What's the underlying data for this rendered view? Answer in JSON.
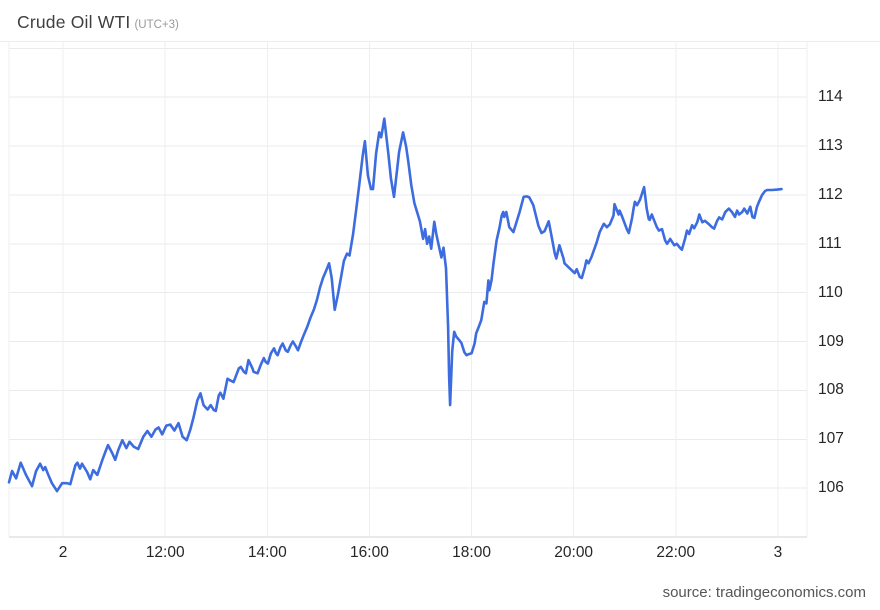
{
  "header": {
    "title": "Crude Oil WTI",
    "timezone_label": "(UTC+3)"
  },
  "footer": {
    "source": "source: tradingeconomics.com"
  },
  "chart_data": {
    "type": "line",
    "title": "Crude Oil WTI",
    "timezone": "UTC+3",
    "grid": true,
    "legend_position": "none",
    "series_color": "#3c6ce0",
    "x_unit": "hour_of_day (values >= 24 are day 3)",
    "x_axis": {
      "position": "bottom",
      "range_hours": [
        8.94,
        24.57
      ],
      "ticks": [
        {
          "t": 10,
          "label": "2"
        },
        {
          "t": 12,
          "label": "12:00"
        },
        {
          "t": 14,
          "label": "14:00"
        },
        {
          "t": 16,
          "label": "16:00"
        },
        {
          "t": 18,
          "label": "18:00"
        },
        {
          "t": 20,
          "label": "20:00"
        },
        {
          "t": 22,
          "label": "22:00"
        },
        {
          "t": 24,
          "label": "3"
        }
      ]
    },
    "y_axis": {
      "position": "right",
      "range": [
        105.0,
        115.15
      ],
      "ticks": [
        106,
        107,
        108,
        109,
        110,
        111,
        112,
        113,
        114
      ]
    },
    "series": [
      {
        "name": "Crude Oil WTI",
        "points": [
          [
            8.94,
            106.12
          ],
          [
            9.0,
            106.35
          ],
          [
            9.08,
            106.2
          ],
          [
            9.17,
            106.52
          ],
          [
            9.27,
            106.28
          ],
          [
            9.39,
            106.04
          ],
          [
            9.47,
            106.35
          ],
          [
            9.55,
            106.5
          ],
          [
            9.61,
            106.37
          ],
          [
            9.65,
            106.43
          ],
          [
            9.71,
            106.27
          ],
          [
            9.78,
            106.1
          ],
          [
            9.88,
            105.94
          ],
          [
            9.98,
            106.1
          ],
          [
            10.08,
            106.1
          ],
          [
            10.14,
            106.08
          ],
          [
            10.24,
            106.47
          ],
          [
            10.28,
            106.52
          ],
          [
            10.33,
            106.4
          ],
          [
            10.37,
            106.5
          ],
          [
            10.47,
            106.33
          ],
          [
            10.53,
            106.18
          ],
          [
            10.59,
            106.37
          ],
          [
            10.67,
            106.27
          ],
          [
            10.77,
            106.58
          ],
          [
            10.83,
            106.75
          ],
          [
            10.88,
            106.88
          ],
          [
            10.96,
            106.72
          ],
          [
            11.02,
            106.58
          ],
          [
            11.08,
            106.78
          ],
          [
            11.16,
            106.98
          ],
          [
            11.24,
            106.82
          ],
          [
            11.3,
            106.95
          ],
          [
            11.38,
            106.85
          ],
          [
            11.47,
            106.8
          ],
          [
            11.57,
            107.05
          ],
          [
            11.65,
            107.17
          ],
          [
            11.73,
            107.05
          ],
          [
            11.81,
            107.2
          ],
          [
            11.87,
            107.24
          ],
          [
            11.94,
            107.1
          ],
          [
            12.02,
            107.28
          ],
          [
            12.1,
            107.3
          ],
          [
            12.18,
            107.18
          ],
          [
            12.26,
            107.33
          ],
          [
            12.34,
            107.05
          ],
          [
            12.42,
            106.98
          ],
          [
            12.49,
            107.19
          ],
          [
            12.55,
            107.43
          ],
          [
            12.63,
            107.8
          ],
          [
            12.69,
            107.94
          ],
          [
            12.75,
            107.7
          ],
          [
            12.83,
            107.61
          ],
          [
            12.89,
            107.7
          ],
          [
            12.95,
            107.6
          ],
          [
            12.99,
            107.58
          ],
          [
            13.05,
            107.9
          ],
          [
            13.08,
            107.95
          ],
          [
            13.14,
            107.83
          ],
          [
            13.22,
            108.24
          ],
          [
            13.28,
            108.2
          ],
          [
            13.34,
            108.17
          ],
          [
            13.44,
            108.45
          ],
          [
            13.48,
            108.48
          ],
          [
            13.54,
            108.38
          ],
          [
            13.58,
            108.35
          ],
          [
            13.63,
            108.62
          ],
          [
            13.71,
            108.45
          ],
          [
            13.73,
            108.38
          ],
          [
            13.81,
            108.35
          ],
          [
            13.87,
            108.52
          ],
          [
            13.93,
            108.66
          ],
          [
            13.97,
            108.58
          ],
          [
            14.01,
            108.55
          ],
          [
            14.07,
            108.76
          ],
          [
            14.13,
            108.86
          ],
          [
            14.17,
            108.76
          ],
          [
            14.2,
            108.72
          ],
          [
            14.26,
            108.89
          ],
          [
            14.3,
            108.96
          ],
          [
            14.36,
            108.82
          ],
          [
            14.4,
            108.79
          ],
          [
            14.46,
            108.93
          ],
          [
            14.5,
            109.0
          ],
          [
            14.56,
            108.9
          ],
          [
            14.6,
            108.82
          ],
          [
            14.66,
            108.99
          ],
          [
            14.72,
            109.15
          ],
          [
            14.78,
            109.3
          ],
          [
            14.85,
            109.5
          ],
          [
            14.91,
            109.65
          ],
          [
            14.97,
            109.85
          ],
          [
            15.03,
            110.1
          ],
          [
            15.09,
            110.3
          ],
          [
            15.15,
            110.45
          ],
          [
            15.21,
            110.6
          ],
          [
            15.26,
            110.3
          ],
          [
            15.32,
            109.65
          ],
          [
            15.38,
            109.95
          ],
          [
            15.44,
            110.3
          ],
          [
            15.5,
            110.65
          ],
          [
            15.56,
            110.8
          ],
          [
            15.61,
            110.76
          ],
          [
            15.68,
            111.2
          ],
          [
            15.74,
            111.7
          ],
          [
            15.8,
            112.2
          ],
          [
            15.87,
            112.82
          ],
          [
            15.91,
            113.1
          ],
          [
            15.97,
            112.4
          ],
          [
            16.03,
            112.12
          ],
          [
            16.07,
            112.12
          ],
          [
            16.13,
            112.85
          ],
          [
            16.19,
            113.28
          ],
          [
            16.23,
            113.18
          ],
          [
            16.29,
            113.56
          ],
          [
            16.37,
            112.85
          ],
          [
            16.42,
            112.34
          ],
          [
            16.48,
            111.96
          ],
          [
            16.54,
            112.5
          ],
          [
            16.58,
            112.88
          ],
          [
            16.66,
            113.28
          ],
          [
            16.72,
            112.98
          ],
          [
            16.76,
            112.68
          ],
          [
            16.82,
            112.2
          ],
          [
            16.88,
            111.83
          ],
          [
            16.95,
            111.59
          ],
          [
            16.99,
            111.45
          ],
          [
            17.05,
            111.1
          ],
          [
            17.09,
            111.3
          ],
          [
            17.13,
            111.0
          ],
          [
            17.17,
            111.15
          ],
          [
            17.21,
            110.9
          ],
          [
            17.27,
            111.45
          ],
          [
            17.31,
            111.2
          ],
          [
            17.35,
            111.0
          ],
          [
            17.41,
            110.72
          ],
          [
            17.45,
            110.92
          ],
          [
            17.5,
            110.5
          ],
          [
            17.54,
            109.3
          ],
          [
            17.56,
            108.3
          ],
          [
            17.58,
            107.7
          ],
          [
            17.62,
            108.8
          ],
          [
            17.66,
            109.2
          ],
          [
            17.7,
            109.1
          ],
          [
            17.76,
            109.03
          ],
          [
            17.8,
            108.97
          ],
          [
            17.86,
            108.78
          ],
          [
            17.9,
            108.72
          ],
          [
            17.94,
            108.74
          ],
          [
            18.0,
            108.76
          ],
          [
            18.06,
            108.96
          ],
          [
            18.09,
            109.17
          ],
          [
            18.13,
            109.27
          ],
          [
            18.19,
            109.44
          ],
          [
            18.25,
            109.81
          ],
          [
            18.29,
            109.78
          ],
          [
            18.33,
            110.25
          ],
          [
            18.35,
            110.05
          ],
          [
            18.39,
            110.25
          ],
          [
            18.43,
            110.6
          ],
          [
            18.49,
            111.07
          ],
          [
            18.55,
            111.34
          ],
          [
            18.59,
            111.58
          ],
          [
            18.62,
            111.65
          ],
          [
            18.64,
            111.55
          ],
          [
            18.68,
            111.65
          ],
          [
            18.74,
            111.34
          ],
          [
            18.82,
            111.24
          ],
          [
            18.94,
            111.65
          ],
          [
            19.02,
            111.96
          ],
          [
            19.08,
            111.97
          ],
          [
            19.13,
            111.95
          ],
          [
            19.21,
            111.79
          ],
          [
            19.31,
            111.37
          ],
          [
            19.37,
            111.22
          ],
          [
            19.43,
            111.26
          ],
          [
            19.51,
            111.46
          ],
          [
            19.57,
            111.14
          ],
          [
            19.63,
            110.8
          ],
          [
            19.66,
            110.7
          ],
          [
            19.72,
            110.97
          ],
          [
            19.8,
            110.7
          ],
          [
            19.82,
            110.6
          ],
          [
            19.9,
            110.52
          ],
          [
            19.96,
            110.46
          ],
          [
            20.02,
            110.4
          ],
          [
            20.06,
            110.48
          ],
          [
            20.12,
            110.32
          ],
          [
            20.16,
            110.3
          ],
          [
            20.22,
            110.52
          ],
          [
            20.25,
            110.66
          ],
          [
            20.29,
            110.6
          ],
          [
            20.35,
            110.73
          ],
          [
            20.45,
            111.03
          ],
          [
            20.51,
            111.24
          ],
          [
            20.59,
            111.41
          ],
          [
            20.65,
            111.34
          ],
          [
            20.71,
            111.4
          ],
          [
            20.78,
            111.58
          ],
          [
            20.8,
            111.81
          ],
          [
            20.88,
            111.6
          ],
          [
            20.9,
            111.68
          ],
          [
            20.94,
            111.58
          ],
          [
            21.04,
            111.3
          ],
          [
            21.08,
            111.22
          ],
          [
            21.14,
            111.51
          ],
          [
            21.18,
            111.76
          ],
          [
            21.2,
            111.86
          ],
          [
            21.24,
            111.79
          ],
          [
            21.3,
            111.9
          ],
          [
            21.38,
            112.16
          ],
          [
            21.43,
            111.72
          ],
          [
            21.47,
            111.51
          ],
          [
            21.49,
            111.49
          ],
          [
            21.53,
            111.6
          ],
          [
            21.59,
            111.44
          ],
          [
            21.63,
            111.34
          ],
          [
            21.67,
            111.27
          ],
          [
            21.73,
            111.3
          ],
          [
            21.79,
            111.07
          ],
          [
            21.83,
            111.0
          ],
          [
            21.89,
            111.1
          ],
          [
            21.97,
            110.97
          ],
          [
            22.02,
            111.0
          ],
          [
            22.08,
            110.92
          ],
          [
            22.12,
            110.88
          ],
          [
            22.18,
            111.1
          ],
          [
            22.22,
            111.27
          ],
          [
            22.26,
            111.2
          ],
          [
            22.32,
            111.38
          ],
          [
            22.36,
            111.32
          ],
          [
            22.42,
            111.44
          ],
          [
            22.46,
            111.6
          ],
          [
            22.52,
            111.44
          ],
          [
            22.57,
            111.47
          ],
          [
            22.65,
            111.4
          ],
          [
            22.71,
            111.34
          ],
          [
            22.75,
            111.31
          ],
          [
            22.81,
            111.47
          ],
          [
            22.85,
            111.54
          ],
          [
            22.91,
            111.5
          ],
          [
            22.97,
            111.65
          ],
          [
            23.04,
            111.72
          ],
          [
            23.1,
            111.65
          ],
          [
            23.16,
            111.55
          ],
          [
            23.2,
            111.68
          ],
          [
            23.24,
            111.6
          ],
          [
            23.3,
            111.65
          ],
          [
            23.34,
            111.72
          ],
          [
            23.4,
            111.62
          ],
          [
            23.46,
            111.76
          ],
          [
            23.5,
            111.55
          ],
          [
            23.54,
            111.53
          ],
          [
            23.59,
            111.76
          ],
          [
            23.63,
            111.86
          ],
          [
            23.69,
            112.0
          ],
          [
            23.75,
            112.08
          ],
          [
            23.79,
            112.1
          ],
          [
            23.89,
            112.1
          ],
          [
            23.99,
            112.11
          ],
          [
            24.07,
            112.12
          ]
        ]
      }
    ]
  }
}
